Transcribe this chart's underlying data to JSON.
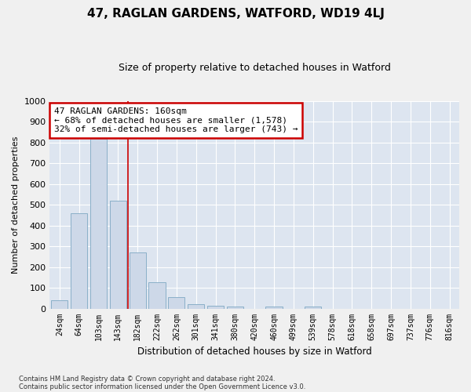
{
  "title": "47, RAGLAN GARDENS, WATFORD, WD19 4LJ",
  "subtitle": "Size of property relative to detached houses in Watford",
  "xlabel": "Distribution of detached houses by size in Watford",
  "ylabel": "Number of detached properties",
  "footnote1": "Contains HM Land Registry data © Crown copyright and database right 2024.",
  "footnote2": "Contains public sector information licensed under the Open Government Licence v3.0.",
  "categories": [
    "24sqm",
    "64sqm",
    "103sqm",
    "143sqm",
    "182sqm",
    "222sqm",
    "262sqm",
    "301sqm",
    "341sqm",
    "380sqm",
    "420sqm",
    "460sqm",
    "499sqm",
    "539sqm",
    "578sqm",
    "618sqm",
    "658sqm",
    "697sqm",
    "737sqm",
    "776sqm",
    "816sqm"
  ],
  "values": [
    40,
    460,
    820,
    520,
    270,
    125,
    55,
    22,
    12,
    10,
    0,
    10,
    0,
    10,
    0,
    0,
    0,
    0,
    0,
    0,
    0
  ],
  "bar_color": "#cdd8e8",
  "bar_edge_color": "#8aafc8",
  "bg_color": "#dde5f0",
  "grid_color": "#ffffff",
  "fig_bg_color": "#f0f0f0",
  "vline_x": 3.5,
  "vline_color": "#cc0000",
  "annotation_text": "47 RAGLAN GARDENS: 160sqm\n← 68% of detached houses are smaller (1,578)\n32% of semi-detached houses are larger (743) →",
  "annotation_box_color": "#cc0000",
  "ylim": [
    0,
    1000
  ],
  "yticks": [
    0,
    100,
    200,
    300,
    400,
    500,
    600,
    700,
    800,
    900,
    1000
  ]
}
